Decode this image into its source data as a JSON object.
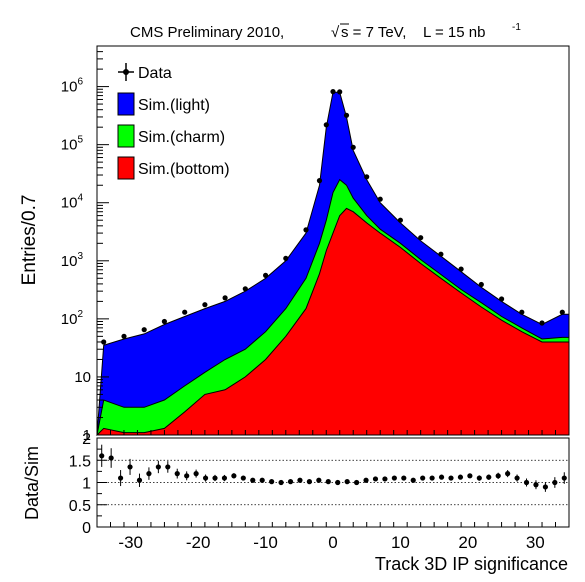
{
  "header": {
    "title_prefix": "CMS Preliminary 2010,",
    "sqrt_symbol": "√",
    "energy_text": "s = 7 TeV,",
    "lumi_text": "L = 15 nb",
    "lumi_exponent": "-1"
  },
  "chart_data": [
    {
      "type": "area",
      "panel": "main",
      "ylabel": "Entries/0.7",
      "y_scale": "log",
      "xlim": [
        -35,
        35
      ],
      "ylim": [
        1,
        5000000
      ],
      "y_tick_labels": [
        {
          "base": "1",
          "exp": "",
          "value": 1
        },
        {
          "base": "10",
          "exp": "",
          "value": 10
        },
        {
          "base": "10",
          "exp": "2",
          "value": 100
        },
        {
          "base": "10",
          "exp": "3",
          "value": 1000
        },
        {
          "base": "10",
          "exp": "4",
          "value": 10000
        },
        {
          "base": "10",
          "exp": "5",
          "value": 100000
        },
        {
          "base": "10",
          "exp": "6",
          "value": 1000000
        }
      ],
      "legend": {
        "placement": "top-left",
        "entries": [
          {
            "label": "Data",
            "style": "marker"
          },
          {
            "label": "Sim.(light)",
            "color": "#0000ff"
          },
          {
            "label": "Sim.(charm)",
            "color": "#00ff00"
          },
          {
            "label": "Sim.(bottom)",
            "color": "#ff0000"
          }
        ]
      },
      "x": [
        -34,
        -31,
        -28,
        -25,
        -22,
        -19,
        -16,
        -13,
        -10,
        -7,
        -4,
        -2,
        -1,
        0,
        1,
        2,
        3,
        5,
        7,
        10,
        13,
        16,
        19,
        22,
        25,
        28,
        31,
        34
      ],
      "series": [
        {
          "name": "Sim.(bottom)",
          "color": "#ff0000",
          "values": [
            1.3,
            1.1,
            1.1,
            1.3,
            2.5,
            5,
            6,
            10,
            20,
            50,
            150,
            600,
            1500,
            3000,
            6000,
            8000,
            7000,
            4500,
            3000,
            1700,
            900,
            500,
            280,
            160,
            95,
            60,
            40,
            40
          ]
        },
        {
          "name": "Sim.(charm)",
          "color": "#00ff00",
          "values": [
            4,
            3,
            3,
            4,
            7,
            12,
            20,
            30,
            60,
            150,
            500,
            2000,
            5000,
            15000,
            25000,
            20000,
            12000,
            6000,
            3500,
            2000,
            1050,
            580,
            320,
            190,
            110,
            70,
            45,
            48
          ]
        },
        {
          "name": "Sim.(light)",
          "color": "#0000ff",
          "values": [
            35,
            45,
            55,
            80,
            110,
            150,
            200,
            300,
            500,
            1000,
            3000,
            20000,
            200000,
            800000,
            800000,
            300000,
            80000,
            25000,
            10000,
            4500,
            2200,
            1200,
            650,
            350,
            200,
            120,
            80,
            120
          ]
        },
        {
          "name": "Data",
          "style": "marker",
          "values": [
            40,
            50,
            65,
            90,
            130,
            175,
            230,
            330,
            560,
            1100,
            3400,
            24000,
            220000,
            820000,
            810000,
            320000,
            90000,
            28000,
            11500,
            5000,
            2500,
            1300,
            720,
            390,
            220,
            130,
            85,
            130
          ]
        }
      ]
    },
    {
      "type": "scatter",
      "panel": "ratio",
      "xlabel": "Track 3D IP significance",
      "ylabel": "Data/Sim",
      "xlim": [
        -35,
        35
      ],
      "ylim": [
        0,
        2
      ],
      "x_tick_labels": [
        "-30",
        "-20",
        "-10",
        "0",
        "10",
        "20",
        "30"
      ],
      "y_tick_labels": [
        "0",
        "0.5",
        "1",
        "1.5",
        "2"
      ],
      "reference_lines": [
        0.5,
        1,
        1.5
      ],
      "x": [
        -34.3,
        -32.9,
        -31.5,
        -30.1,
        -28.7,
        -27.3,
        -25.9,
        -24.5,
        -23.1,
        -21.7,
        -20.3,
        -18.9,
        -17.5,
        -16.1,
        -14.7,
        -13.3,
        -11.9,
        -10.5,
        -9.1,
        -7.7,
        -6.3,
        -4.9,
        -3.5,
        -2.1,
        -0.7,
        0.7,
        2.1,
        3.5,
        4.9,
        6.3,
        7.7,
        9.1,
        10.5,
        11.9,
        13.3,
        14.7,
        16.1,
        17.5,
        18.9,
        20.3,
        21.7,
        23.1,
        24.5,
        25.9,
        27.3,
        28.7,
        30.1,
        31.5,
        32.9,
        34.3
      ],
      "values": [
        1.6,
        1.55,
        1.1,
        1.35,
        1.05,
        1.2,
        1.35,
        1.35,
        1.2,
        1.15,
        1.2,
        1.1,
        1.1,
        1.1,
        1.15,
        1.1,
        1.05,
        1.05,
        1.02,
        1.0,
        1.02,
        1.05,
        1.02,
        1.05,
        1.02,
        1.0,
        1.02,
        1.0,
        1.05,
        1.08,
        1.08,
        1.1,
        1.1,
        1.05,
        1.1,
        1.1,
        1.12,
        1.1,
        1.12,
        1.15,
        1.1,
        1.12,
        1.15,
        1.2,
        1.1,
        1.0,
        0.95,
        0.9,
        1.0,
        1.1
      ],
      "errors": [
        0.25,
        0.22,
        0.18,
        0.18,
        0.15,
        0.14,
        0.14,
        0.13,
        0.11,
        0.1,
        0.09,
        0.08,
        0.07,
        0.07,
        0.06,
        0.05,
        0.04,
        0.04,
        0.03,
        0.03,
        0.02,
        0.02,
        0.02,
        0.01,
        0.01,
        0.01,
        0.01,
        0.02,
        0.02,
        0.02,
        0.02,
        0.03,
        0.03,
        0.03,
        0.04,
        0.04,
        0.04,
        0.05,
        0.05,
        0.05,
        0.06,
        0.06,
        0.07,
        0.08,
        0.08,
        0.09,
        0.1,
        0.11,
        0.12,
        0.13
      ]
    }
  ]
}
